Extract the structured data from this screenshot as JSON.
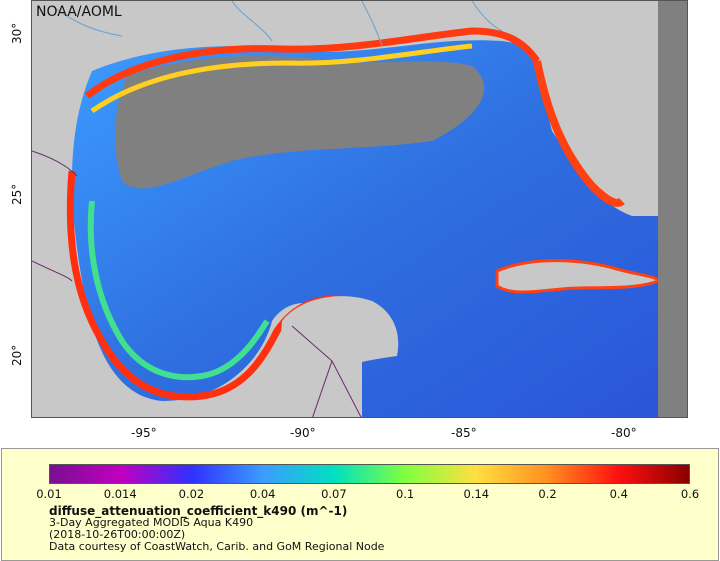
{
  "credit": "NOAA/AOML",
  "lat_ticks": [
    {
      "label": "30°",
      "value": 30
    },
    {
      "label": "25°",
      "value": 25
    },
    {
      "label": "20°",
      "value": 20
    }
  ],
  "lon_ticks": [
    {
      "label": "-95°",
      "value": -95
    },
    {
      "label": "-90°",
      "value": -90
    },
    {
      "label": "-85°",
      "value": -85
    },
    {
      "label": "-80°",
      "value": -80
    }
  ],
  "colorbar": {
    "labels": [
      "0.01",
      "0.014",
      "0.02",
      "0.04",
      "0.07",
      "0.1",
      "0.14",
      "0.2",
      "0.4",
      "0.6"
    ],
    "colors": [
      "#7a0f90",
      "#c000c0",
      "#3030ff",
      "#3c9cff",
      "#00e0c0",
      "#80ff40",
      "#ffe040",
      "#ff9020",
      "#ff1010",
      "#8a0000"
    ]
  },
  "legend": {
    "title": "diffuse_attenuation_coefficient_k490 (m^-1)",
    "line1": "3-Day Aggregated MODIS Aqua K490",
    "line2": "(2018-10-26T00:00:00Z)",
    "line3": "Data courtesy of CoastWatch, Carib. and GoM Regional Node"
  },
  "colors": {
    "land": "#c8c8c8",
    "nodata": "#808080",
    "ocean_deep": "#2f6fe0",
    "border": "#6a2a6a",
    "rivers": "#6aa0d0"
  }
}
